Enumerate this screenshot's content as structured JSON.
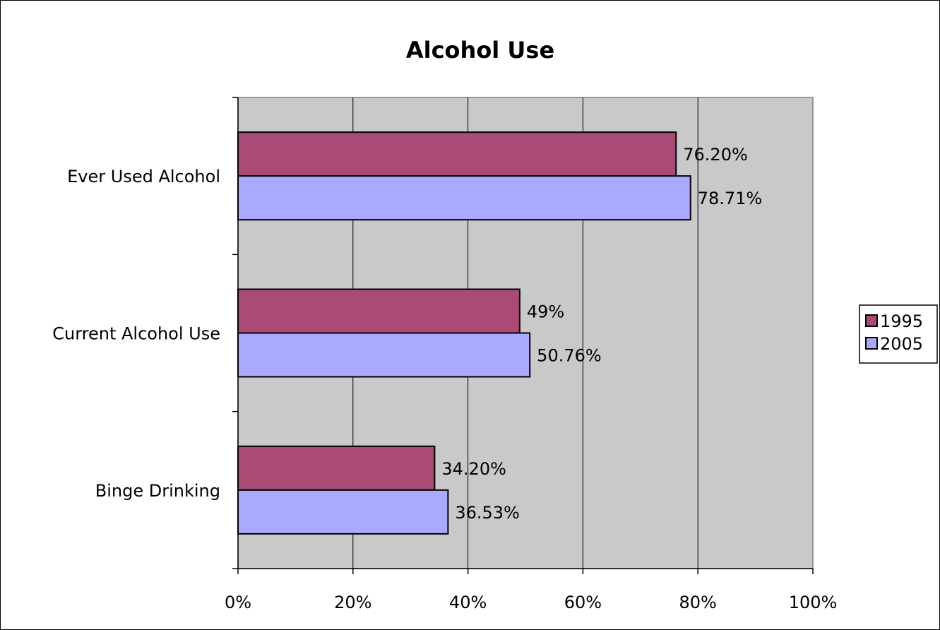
{
  "chart_data": {
    "type": "bar",
    "orientation": "horizontal",
    "title": "Alcohol Use",
    "categories": [
      "Ever Used Alcohol",
      "Current Alcohol Use",
      "Binge Drinking"
    ],
    "series": [
      {
        "name": "1995",
        "values": [
          76.2,
          49,
          34.2
        ],
        "labels": [
          "76.20%",
          "49%",
          "34.20%"
        ],
        "color": "#AA4A77"
      },
      {
        "name": "2005",
        "values": [
          78.71,
          50.76,
          36.53
        ],
        "labels": [
          "78.71%",
          "50.76%",
          "36.53%"
        ],
        "color": "#A9A9FF"
      }
    ],
    "xlim": [
      0,
      100
    ],
    "xticks": [
      "0%",
      "20%",
      "40%",
      "60%",
      "80%",
      "100%"
    ],
    "grid": true,
    "legend_position": "right",
    "plot_background": "#C9C9C9"
  }
}
